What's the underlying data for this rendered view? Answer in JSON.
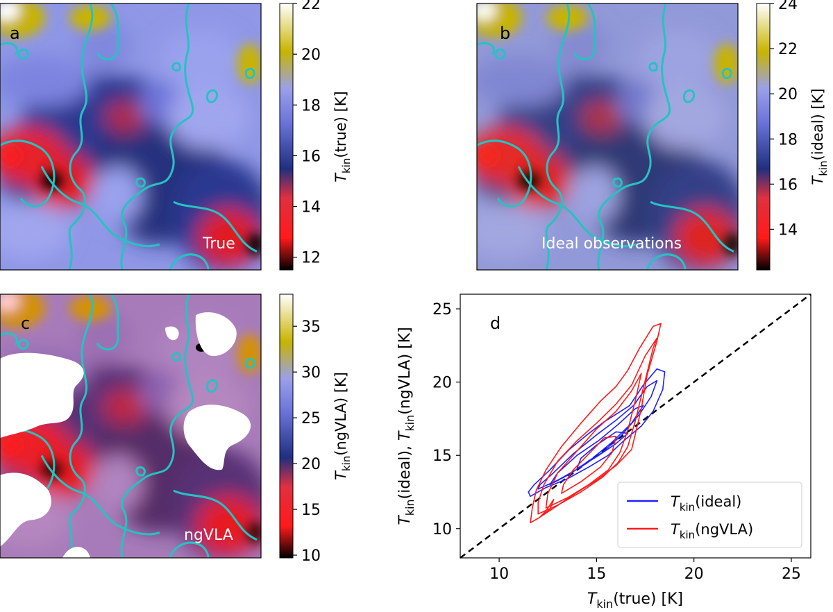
{
  "colormap": {
    "name": "gist_stern-like",
    "stops": [
      "#000000",
      "#ff1a1a",
      "#1a2a78",
      "#8c94e8",
      "#e0e0a0",
      "#ffffff"
    ],
    "bright": "#c8b400",
    "contour": "#26c2c2"
  },
  "chart_data": [
    {
      "id": "a",
      "type": "heatmap",
      "panel_label": "a",
      "annotation": "True",
      "colorbar_label": "T_kin(true) [K]",
      "colorbar_label_parts": {
        "symbol": "T",
        "sub": "kin",
        "rest": "(true) [K]"
      },
      "colorbar_range": [
        11.5,
        22
      ],
      "colorbar_ticks": [
        12,
        14,
        16,
        18,
        20,
        22
      ],
      "masked_regions": false
    },
    {
      "id": "b",
      "type": "heatmap",
      "panel_label": "b",
      "annotation": "Ideal observations",
      "colorbar_label": "T_kin(ideal) [K]",
      "colorbar_label_parts": {
        "symbol": "T",
        "sub": "kin",
        "rest": "(ideal) [K]"
      },
      "colorbar_range": [
        12.2,
        24
      ],
      "colorbar_ticks": [
        14,
        16,
        18,
        20,
        22,
        24
      ],
      "masked_regions": false
    },
    {
      "id": "c",
      "type": "heatmap",
      "panel_label": "c",
      "annotation": "ngVLA",
      "colorbar_label": "T_kin(ngVLA) [K]",
      "colorbar_label_parts": {
        "symbol": "T",
        "sub": "kin",
        "rest": "(ngVLA) [K]"
      },
      "colorbar_range": [
        9.7,
        38.5
      ],
      "colorbar_ticks": [
        10,
        15,
        20,
        25,
        30,
        35
      ],
      "masked_regions": true
    },
    {
      "id": "d",
      "type": "scatter",
      "panel_label": "d",
      "xlabel": "T_kin(true) [K]",
      "xlabel_parts": {
        "symbol": "T",
        "sub": "kin",
        "rest": "(true) [K]"
      },
      "ylabel": "T_kin(ideal),  T_kin(ngVLA) [K]",
      "ylabel_parts": [
        {
          "symbol": "T",
          "sub": "kin",
          "rest": "(ideal),  "
        },
        {
          "symbol": "T",
          "sub": "kin",
          "rest": "(ngVLA) [K]"
        }
      ],
      "xlim": [
        8,
        26
      ],
      "ylim": [
        8,
        26
      ],
      "xticks": [
        10,
        15,
        20,
        25
      ],
      "yticks": [
        10,
        15,
        20,
        25
      ],
      "one_to_one_line": true,
      "legend_position": "lower-right",
      "series": [
        {
          "name": "T_kin(ideal)",
          "legend_parts": {
            "symbol": "T",
            "sub": "kin",
            "rest": "(ideal)"
          },
          "color": "#1f1fff",
          "contours": [
            [
              [
                11.6,
                12.2
              ],
              [
                12.4,
                12.8
              ],
              [
                13.5,
                13.4
              ],
              [
                14.6,
                14.2
              ],
              [
                15.6,
                15.0
              ],
              [
                16.4,
                16.0
              ],
              [
                17.3,
                17.0
              ],
              [
                17.9,
                18.0
              ],
              [
                18.4,
                19.5
              ],
              [
                18.5,
                20.7
              ],
              [
                18.1,
                20.9
              ],
              [
                17.4,
                19.8
              ],
              [
                16.7,
                18.4
              ],
              [
                16.0,
                17.8
              ],
              [
                15.4,
                17.3
              ],
              [
                14.6,
                16.5
              ],
              [
                13.6,
                15.4
              ],
              [
                12.6,
                14.0
              ],
              [
                11.8,
                13.0
              ],
              [
                11.5,
                12.5
              ]
            ],
            [
              [
                12.0,
                12.7
              ],
              [
                13.0,
                13.3
              ],
              [
                14.2,
                14.2
              ],
              [
                15.3,
                15.2
              ],
              [
                16.3,
                16.4
              ],
              [
                17.2,
                17.8
              ],
              [
                17.8,
                19.0
              ],
              [
                18.1,
                20.1
              ],
              [
                17.6,
                19.7
              ],
              [
                16.9,
                18.4
              ],
              [
                16.0,
                17.4
              ],
              [
                15.0,
                16.4
              ],
              [
                13.8,
                15.1
              ],
              [
                12.7,
                13.7
              ],
              [
                12.1,
                13.0
              ]
            ],
            [
              [
                12.6,
                13.0
              ],
              [
                13.6,
                13.7
              ],
              [
                14.8,
                14.8
              ],
              [
                15.8,
                15.9
              ],
              [
                16.8,
                17.2
              ],
              [
                17.4,
                18.4
              ],
              [
                17.0,
                18.2
              ],
              [
                16.1,
                17.1
              ],
              [
                15.1,
                16.0
              ],
              [
                14.0,
                15.0
              ],
              [
                13.0,
                13.8
              ]
            ],
            [
              [
                14.0,
                14.1
              ],
              [
                15.0,
                14.9
              ],
              [
                16.0,
                15.8
              ],
              [
                16.6,
                16.5
              ],
              [
                16.0,
                16.6
              ],
              [
                15.0,
                15.7
              ],
              [
                14.2,
                14.8
              ]
            ]
          ]
        },
        {
          "name": "T_kin(ngVLA)",
          "legend_parts": {
            "symbol": "T",
            "sub": "kin",
            "rest": "(ngVLA)"
          },
          "color": "#ff1a1a",
          "contours": [
            [
              [
                11.6,
                10.4
              ],
              [
                12.0,
                10.7
              ],
              [
                12.8,
                11.4
              ],
              [
                13.8,
                12.3
              ],
              [
                15.0,
                13.3
              ],
              [
                16.0,
                14.3
              ],
              [
                16.8,
                15.4
              ],
              [
                17.0,
                16.5
              ],
              [
                17.3,
                18.2
              ],
              [
                17.6,
                20.5
              ],
              [
                18.1,
                22.8
              ],
              [
                18.3,
                24.0
              ],
              [
                17.9,
                23.8
              ],
              [
                17.2,
                22.3
              ],
              [
                16.6,
                20.8
              ],
              [
                16.0,
                19.7
              ],
              [
                15.2,
                18.7
              ],
              [
                14.2,
                17.2
              ],
              [
                13.2,
                15.6
              ],
              [
                12.4,
                14.0
              ],
              [
                11.9,
                12.6
              ],
              [
                11.7,
                11.4
              ]
            ],
            [
              [
                12.0,
                11.0
              ],
              [
                13.0,
                11.6
              ],
              [
                14.2,
                12.5
              ],
              [
                15.3,
                13.5
              ],
              [
                16.1,
                14.5
              ],
              [
                16.6,
                15.6
              ],
              [
                17.0,
                17.4
              ],
              [
                17.4,
                19.6
              ],
              [
                17.9,
                22.3
              ],
              [
                18.1,
                23.0
              ],
              [
                17.5,
                21.8
              ],
              [
                16.8,
                19.8
              ],
              [
                16.0,
                18.5
              ],
              [
                15.0,
                17.2
              ],
              [
                14.0,
                16.0
              ],
              [
                13.0,
                14.6
              ],
              [
                12.3,
                13.0
              ],
              [
                12.0,
                11.8
              ]
            ],
            [
              [
                12.4,
                11.4
              ],
              [
                13.5,
                12.1
              ],
              [
                14.6,
                13.0
              ],
              [
                15.6,
                14.0
              ],
              [
                16.2,
                15.2
              ],
              [
                16.6,
                16.7
              ],
              [
                17.0,
                18.8
              ],
              [
                17.3,
                20.6
              ],
              [
                16.8,
                19.4
              ],
              [
                16.0,
                18.0
              ],
              [
                15.0,
                16.8
              ],
              [
                14.0,
                15.3
              ],
              [
                13.0,
                13.8
              ],
              [
                12.5,
                12.4
              ]
            ],
            [
              [
                13.2,
                12.4
              ],
              [
                14.2,
                13.2
              ],
              [
                15.2,
                14.2
              ],
              [
                15.8,
                15.2
              ],
              [
                16.0,
                16.3
              ],
              [
                15.4,
                16.2
              ],
              [
                14.6,
                15.1
              ],
              [
                13.8,
                14.0
              ],
              [
                13.3,
                13.0
              ]
            ],
            [
              [
                12.8,
                12.0
              ],
              [
                12.4,
                11.2
              ],
              [
                12.1,
                10.8
              ],
              [
                12.6,
                11.3
              ]
            ]
          ]
        }
      ]
    }
  ]
}
